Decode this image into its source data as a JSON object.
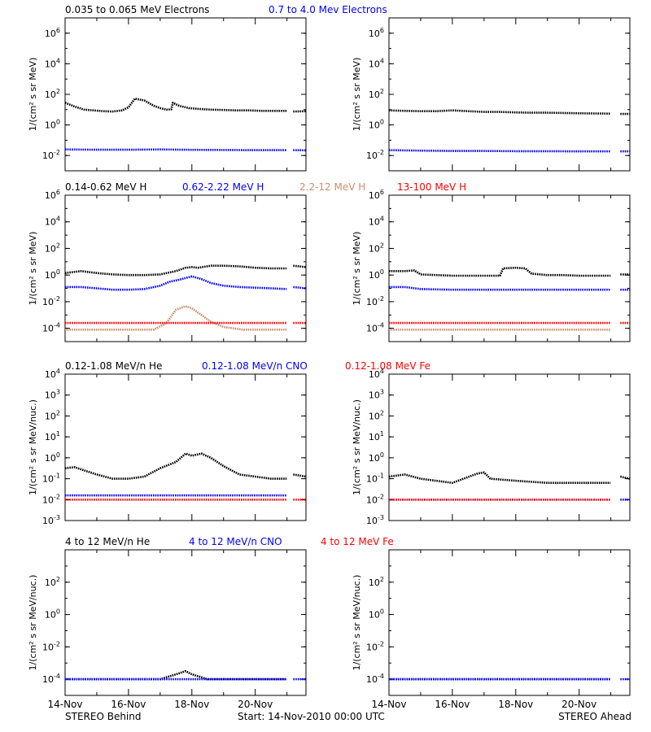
{
  "footer": {
    "left": "STEREO Behind",
    "center": "Start: 14-Nov-2010 00:00 UTC",
    "right": "STEREO Ahead"
  },
  "x_ticks": [
    "14-Nov",
    "16-Nov",
    "18-Nov",
    "20-Nov"
  ],
  "colors": {
    "black": "#000000",
    "blue": "#0000ff",
    "brown": "#cd8c6e",
    "red": "#ff0000"
  },
  "chart_data": [
    {
      "type": "scatter",
      "row": 0,
      "panels": [
        "STEREO Behind",
        "STEREO Ahead"
      ],
      "legend": [
        {
          "label": "0.035 to 0.065 MeV Electrons",
          "color": "black"
        },
        {
          "label": "0.7 to 4.0 Mev Electrons",
          "color": "blue"
        }
      ],
      "ylabel": "1/(cm² s sr MeV)",
      "yscale": "log",
      "ylim_exp": [
        -3,
        7
      ],
      "yticks": [
        {
          "exp": -2,
          "label": "10",
          "sup": "-2"
        },
        {
          "exp": 0,
          "label": "10",
          "sup": "0"
        },
        {
          "exp": 2,
          "label": "10",
          "sup": "2"
        },
        {
          "exp": 4,
          "label": "10",
          "sup": "4"
        },
        {
          "exp": 6,
          "label": "10",
          "sup": "6"
        }
      ],
      "xlim_days": [
        0,
        7.6
      ]
    },
    {
      "type": "scatter",
      "row": 1,
      "panels": [
        "STEREO Behind",
        "STEREO Ahead"
      ],
      "legend": [
        {
          "label": "0.14-0.62 MeV H",
          "color": "black"
        },
        {
          "label": "0.62-2.22 MeV H",
          "color": "blue"
        },
        {
          "label": "2.2-12 MeV H",
          "color": "brown"
        },
        {
          "label": "13-100 MeV H",
          "color": "red"
        }
      ],
      "ylabel": "1/(cm² s sr MeV)",
      "yscale": "log",
      "ylim_exp": [
        -5,
        6
      ],
      "yticks": [
        {
          "exp": -4,
          "label": "10",
          "sup": "-4"
        },
        {
          "exp": -2,
          "label": "10",
          "sup": "-2"
        },
        {
          "exp": 0,
          "label": "10",
          "sup": "0"
        },
        {
          "exp": 2,
          "label": "10",
          "sup": "2"
        },
        {
          "exp": 4,
          "label": "10",
          "sup": "4"
        },
        {
          "exp": 6,
          "label": "10",
          "sup": "6"
        }
      ],
      "xlim_days": [
        0,
        7.6
      ]
    },
    {
      "type": "scatter",
      "row": 2,
      "panels": [
        "STEREO Behind",
        "STEREO Ahead"
      ],
      "legend": [
        {
          "label": "0.12-1.08 MeV/n He",
          "color": "black"
        },
        {
          "label": "0.12-1.08 MeV/n CNO",
          "color": "blue"
        },
        {
          "label": "0.12-1.08 MeV Fe",
          "color": "red"
        }
      ],
      "ylabel": "1/(cm² s sr MeV/nuc.)",
      "yscale": "log",
      "ylim_exp": [
        -3,
        4
      ],
      "yticks": [
        {
          "exp": -3,
          "label": "10",
          "sup": "-3"
        },
        {
          "exp": -2,
          "label": "10",
          "sup": "-2"
        },
        {
          "exp": -1,
          "label": "10",
          "sup": "-1"
        },
        {
          "exp": 0,
          "label": "10",
          "sup": "0"
        },
        {
          "exp": 1,
          "label": "10",
          "sup": "1"
        },
        {
          "exp": 2,
          "label": "10",
          "sup": "2"
        },
        {
          "exp": 3,
          "label": "10",
          "sup": "3"
        },
        {
          "exp": 4,
          "label": "10",
          "sup": "4"
        }
      ],
      "xlim_days": [
        0,
        7.6
      ]
    },
    {
      "type": "scatter",
      "row": 3,
      "panels": [
        "STEREO Behind",
        "STEREO Ahead"
      ],
      "legend": [
        {
          "label": "4 to 12 MeV/n He",
          "color": "black"
        },
        {
          "label": "4 to 12 MeV/n CNO",
          "color": "blue"
        },
        {
          "label": "4 to 12 MeV Fe",
          "color": "red"
        }
      ],
      "ylabel": "1/(cm² s sr MeV/nuc.)",
      "yscale": "log",
      "ylim_exp": [
        -5,
        4
      ],
      "yticks": [
        {
          "exp": -4,
          "label": "10",
          "sup": "-4"
        },
        {
          "exp": -2,
          "label": "10",
          "sup": "-2"
        },
        {
          "exp": 0,
          "label": "10",
          "sup": "0"
        },
        {
          "exp": 2,
          "label": "10",
          "sup": "2"
        }
      ],
      "xlim_days": [
        0,
        7.6
      ]
    }
  ],
  "series": {
    "r0_behind_black": {
      "x": [
        0.0,
        0.3,
        0.6,
        0.9,
        1.2,
        1.5,
        1.8,
        2.0,
        2.2,
        2.5,
        2.8,
        3.0,
        3.2,
        3.35,
        3.4,
        3.6,
        3.9,
        4.2,
        4.6,
        5.0,
        5.4,
        5.8,
        6.2,
        6.6,
        6.99
      ],
      "y_exp": [
        1.45,
        1.2,
        1.0,
        0.95,
        0.9,
        0.88,
        0.95,
        1.15,
        1.72,
        1.6,
        1.25,
        1.1,
        1.0,
        1.02,
        1.45,
        1.25,
        1.1,
        1.05,
        1.0,
        0.98,
        0.95,
        0.95,
        0.92,
        0.92,
        0.92
      ]
    },
    "r0_behind_black_b": {
      "x": [
        7.2,
        7.6
      ],
      "y_exp": [
        0.88,
        0.9
      ]
    },
    "r0_behind_blue": {
      "x": [
        0.0,
        1.0,
        2.0,
        3.0,
        4.0,
        5.0,
        6.0,
        6.99
      ],
      "y_exp": [
        -1.6,
        -1.62,
        -1.62,
        -1.6,
        -1.63,
        -1.64,
        -1.65,
        -1.65
      ]
    },
    "r0_behind_blue_b": {
      "x": [
        7.2,
        7.6
      ],
      "y_exp": [
        -1.65,
        -1.66
      ]
    },
    "r0_ahead_black": {
      "x": [
        0.0,
        0.5,
        1.0,
        1.5,
        2.0,
        2.5,
        3.0,
        3.5,
        4.0,
        4.5,
        5.0,
        5.5,
        6.0,
        6.5,
        6.99
      ],
      "y_exp": [
        0.95,
        0.92,
        0.9,
        0.9,
        0.95,
        0.9,
        0.85,
        0.85,
        0.82,
        0.8,
        0.8,
        0.78,
        0.76,
        0.75,
        0.74
      ]
    },
    "r0_ahead_black_b": {
      "x": [
        7.3,
        7.6
      ],
      "y_exp": [
        0.72,
        0.72
      ]
    },
    "r0_ahead_blue": {
      "x": [
        0.0,
        1.0,
        2.0,
        3.0,
        4.0,
        5.0,
        6.0,
        6.99
      ],
      "y_exp": [
        -1.65,
        -1.68,
        -1.7,
        -1.7,
        -1.72,
        -1.72,
        -1.73,
        -1.73
      ]
    },
    "r0_ahead_blue_b": {
      "x": [
        7.3,
        7.6
      ],
      "y_exp": [
        -1.73,
        -1.73
      ]
    },
    "r1_behind_black": {
      "x": [
        0.0,
        0.5,
        1.0,
        1.5,
        2.0,
        2.5,
        3.0,
        3.5,
        3.8,
        4.0,
        4.2,
        4.6,
        5.0,
        5.5,
        6.0,
        6.5,
        6.99
      ],
      "y_exp": [
        0.15,
        0.3,
        0.15,
        0.05,
        0.0,
        0.0,
        0.05,
        0.3,
        0.55,
        0.6,
        0.55,
        0.7,
        0.7,
        0.65,
        0.55,
        0.5,
        0.5
      ]
    },
    "r1_behind_black_b": {
      "x": [
        7.2,
        7.6
      ],
      "y_exp": [
        0.7,
        0.6
      ]
    },
    "r1_behind_blue": {
      "x": [
        0.0,
        0.5,
        1.0,
        1.5,
        2.0,
        2.5,
        3.0,
        3.3,
        3.6,
        4.0,
        4.3,
        4.6,
        5.0,
        5.5,
        6.0,
        6.5,
        6.99
      ],
      "y_exp": [
        -0.9,
        -0.9,
        -1.0,
        -1.1,
        -1.1,
        -1.05,
        -0.8,
        -0.5,
        -0.35,
        -0.1,
        -0.3,
        -0.6,
        -0.8,
        -0.9,
        -0.95,
        -1.0,
        -1.05
      ]
    },
    "r1_behind_blue_b": {
      "x": [
        7.2,
        7.6
      ],
      "y_exp": [
        -0.9,
        -1.0
      ]
    },
    "r1_behind_brown": {
      "x": [
        0.0,
        2.8,
        3.2,
        3.5,
        3.8,
        4.0,
        4.3,
        4.6,
        5.0,
        5.3,
        5.6,
        6.0,
        6.99
      ],
      "y_exp": [
        -4.1,
        -4.1,
        -3.6,
        -2.6,
        -2.35,
        -2.5,
        -3.0,
        -3.5,
        -3.9,
        -4.0,
        -4.1,
        -4.1,
        -4.1
      ]
    },
    "r1_behind_red": {
      "x": [
        0.0,
        1.0,
        2.0,
        3.0,
        4.0,
        5.0,
        6.0,
        6.99
      ],
      "y_exp": [
        -3.6,
        -3.6,
        -3.6,
        -3.6,
        -3.6,
        -3.6,
        -3.6,
        -3.6
      ]
    },
    "r1_behind_red_b": {
      "x": [
        7.2,
        7.6
      ],
      "y_exp": [
        -3.6,
        -3.6
      ]
    },
    "r1_ahead_black": {
      "x": [
        0.0,
        0.5,
        0.8,
        1.0,
        1.5,
        2.0,
        2.5,
        3.0,
        3.5,
        3.6,
        4.0,
        4.3,
        4.5,
        5.0,
        5.5,
        6.0,
        6.5,
        6.99
      ],
      "y_exp": [
        0.3,
        0.3,
        0.35,
        0.05,
        0.0,
        -0.05,
        -0.05,
        -0.05,
        -0.05,
        0.5,
        0.55,
        0.5,
        0.1,
        0.0,
        0.0,
        -0.05,
        -0.05,
        -0.05
      ]
    },
    "r1_ahead_black_b": {
      "x": [
        7.3,
        7.6
      ],
      "y_exp": [
        0.05,
        0.05
      ]
    },
    "r1_ahead_blue": {
      "x": [
        0.0,
        0.5,
        1.0,
        2.0,
        3.0,
        4.0,
        5.0,
        6.0,
        6.99
      ],
      "y_exp": [
        -0.9,
        -0.9,
        -1.05,
        -1.1,
        -1.1,
        -1.1,
        -1.1,
        -1.1,
        -1.1
      ]
    },
    "r1_ahead_blue_b": {
      "x": [
        7.3,
        7.6
      ],
      "y_exp": [
        -1.1,
        -1.1
      ]
    },
    "r1_ahead_brown": {
      "x": [
        0.0,
        6.99
      ],
      "y_exp": [
        -4.1,
        -4.1
      ]
    },
    "r1_ahead_red": {
      "x": [
        0.0,
        1.0,
        2.0,
        3.0,
        4.0,
        5.0,
        6.0,
        6.99
      ],
      "y_exp": [
        -3.6,
        -3.6,
        -3.6,
        -3.6,
        -3.6,
        -3.6,
        -3.6,
        -3.6
      ]
    },
    "r1_ahead_red_b": {
      "x": [
        7.3,
        7.6
      ],
      "y_exp": [
        -3.6,
        -3.6
      ]
    },
    "r2_behind_black": {
      "x": [
        0.0,
        0.3,
        0.6,
        1.0,
        1.5,
        2.0,
        2.5,
        3.0,
        3.5,
        3.8,
        4.0,
        4.3,
        4.6,
        5.0,
        5.5,
        6.0,
        6.5,
        6.99
      ],
      "y_exp": [
        -0.5,
        -0.45,
        -0.6,
        -0.8,
        -1.0,
        -1.0,
        -0.9,
        -0.5,
        -0.2,
        0.2,
        0.1,
        0.2,
        0.0,
        -0.4,
        -0.8,
        -0.9,
        -1.0,
        -1.0
      ]
    },
    "r2_behind_black_b": {
      "x": [
        7.2,
        7.6
      ],
      "y_exp": [
        -0.8,
        -0.9
      ]
    },
    "r2_behind_blue": {
      "x": [
        0.0,
        1.0,
        2.0,
        3.0,
        4.0,
        5.0,
        6.0,
        6.99
      ],
      "y_exp": [
        -1.8,
        -1.8,
        -1.8,
        -1.8,
        -1.8,
        -1.8,
        -1.8,
        -1.8
      ]
    },
    "r2_behind_red": {
      "x": [
        0.0,
        1.0,
        2.0,
        3.0,
        4.0,
        5.0,
        6.0,
        6.99
      ],
      "y_exp": [
        -2.0,
        -2.0,
        -2.0,
        -2.0,
        -2.0,
        -2.0,
        -2.0,
        -2.0
      ]
    },
    "r2_behind_red_b": {
      "x": [
        7.2,
        7.6
      ],
      "y_exp": [
        -2.0,
        -2.0
      ]
    },
    "r2_ahead_black": {
      "x": [
        0.0,
        0.5,
        1.0,
        2.0,
        2.8,
        3.0,
        3.2,
        4.0,
        5.0,
        6.0,
        6.99
      ],
      "y_exp": [
        -0.9,
        -0.8,
        -1.0,
        -1.2,
        -0.75,
        -0.7,
        -1.0,
        -1.1,
        -1.2,
        -1.2,
        -1.2
      ]
    },
    "r2_ahead_black_b": {
      "x": [
        7.3,
        7.6
      ],
      "y_exp": [
        -0.9,
        -1.0
      ]
    },
    "r2_ahead_blue": {
      "x": [
        0.0,
        1.0,
        2.0,
        3.0,
        4.0,
        5.0,
        6.0,
        6.99
      ],
      "y_exp": [
        -2.0,
        -2.0,
        -2.0,
        -2.0,
        -2.0,
        -2.0,
        -2.0,
        -2.0
      ]
    },
    "r2_ahead_blue_b": {
      "x": [
        7.3,
        7.6
      ],
      "y_exp": [
        -2.0,
        -2.0
      ]
    },
    "r2_ahead_red": {
      "x": [
        0.0,
        1.0,
        2.0,
        3.0,
        4.0,
        5.0,
        6.0,
        6.99
      ],
      "y_exp": [
        -2.0,
        -2.0,
        -2.0,
        -2.0,
        -2.0,
        -2.0,
        -2.0,
        -2.0
      ]
    },
    "r3_behind_black": {
      "x": [
        0.0,
        1.0,
        2.0,
        3.0,
        3.5,
        3.8,
        4.0,
        4.5,
        5.0,
        6.0,
        6.99
      ],
      "y_exp": [
        -4.0,
        -4.0,
        -4.0,
        -4.0,
        -3.7,
        -3.5,
        -3.7,
        -4.0,
        -4.0,
        -4.0,
        -4.0
      ]
    },
    "r3_behind_blue": {
      "x": [
        0.0,
        1.0,
        2.0,
        3.0,
        4.0,
        5.0,
        6.0,
        6.99
      ],
      "y_exp": [
        -4.0,
        -4.0,
        -4.0,
        -4.0,
        -4.0,
        -4.0,
        -4.0,
        -4.0
      ]
    },
    "r3_behind_blue_b": {
      "x": [
        7.2,
        7.6
      ],
      "y_exp": [
        -4.0,
        -4.0
      ]
    },
    "r3_ahead_black": {
      "x": [
        0.0,
        1.0,
        2.0,
        3.0,
        4.0,
        5.0,
        6.0,
        6.99
      ],
      "y_exp": [
        -4.0,
        -4.0,
        -4.0,
        -4.0,
        -4.0,
        -4.0,
        -4.0,
        -4.0
      ]
    },
    "r3_ahead_blue": {
      "x": [
        0.0,
        1.0,
        2.0,
        3.0,
        4.0,
        5.0,
        6.0,
        6.99
      ],
      "y_exp": [
        -4.0,
        -4.0,
        -4.0,
        -4.0,
        -4.0,
        -4.0,
        -4.0,
        -4.0
      ]
    },
    "r3_ahead_blue_b": {
      "x": [
        7.3,
        7.6
      ],
      "y_exp": [
        -4.0,
        -4.0
      ]
    }
  },
  "series_layout": {
    "r0_behind_black": {
      "row": 0,
      "col": 0,
      "color": "black"
    },
    "r0_behind_black_b": {
      "row": 0,
      "col": 0,
      "color": "black"
    },
    "r0_behind_blue": {
      "row": 0,
      "col": 0,
      "color": "blue"
    },
    "r0_behind_blue_b": {
      "row": 0,
      "col": 0,
      "color": "blue"
    },
    "r0_ahead_black": {
      "row": 0,
      "col": 1,
      "color": "black"
    },
    "r0_ahead_black_b": {
      "row": 0,
      "col": 1,
      "color": "black"
    },
    "r0_ahead_blue": {
      "row": 0,
      "col": 1,
      "color": "blue"
    },
    "r0_ahead_blue_b": {
      "row": 0,
      "col": 1,
      "color": "blue"
    },
    "r1_behind_black": {
      "row": 1,
      "col": 0,
      "color": "black"
    },
    "r1_behind_black_b": {
      "row": 1,
      "col": 0,
      "color": "black"
    },
    "r1_behind_blue": {
      "row": 1,
      "col": 0,
      "color": "blue"
    },
    "r1_behind_blue_b": {
      "row": 1,
      "col": 0,
      "color": "blue"
    },
    "r1_behind_brown": {
      "row": 1,
      "col": 0,
      "color": "brown"
    },
    "r1_behind_red": {
      "row": 1,
      "col": 0,
      "color": "red"
    },
    "r1_behind_red_b": {
      "row": 1,
      "col": 0,
      "color": "red"
    },
    "r1_ahead_black": {
      "row": 1,
      "col": 1,
      "color": "black"
    },
    "r1_ahead_black_b": {
      "row": 1,
      "col": 1,
      "color": "black"
    },
    "r1_ahead_blue": {
      "row": 1,
      "col": 1,
      "color": "blue"
    },
    "r1_ahead_blue_b": {
      "row": 1,
      "col": 1,
      "color": "blue"
    },
    "r1_ahead_brown": {
      "row": 1,
      "col": 1,
      "color": "brown"
    },
    "r1_ahead_red": {
      "row": 1,
      "col": 1,
      "color": "red"
    },
    "r1_ahead_red_b": {
      "row": 1,
      "col": 1,
      "color": "red"
    },
    "r2_behind_black": {
      "row": 2,
      "col": 0,
      "color": "black"
    },
    "r2_behind_black_b": {
      "row": 2,
      "col": 0,
      "color": "black"
    },
    "r2_behind_blue": {
      "row": 2,
      "col": 0,
      "color": "blue"
    },
    "r2_behind_red": {
      "row": 2,
      "col": 0,
      "color": "red"
    },
    "r2_behind_red_b": {
      "row": 2,
      "col": 0,
      "color": "red"
    },
    "r2_ahead_black": {
      "row": 2,
      "col": 1,
      "color": "black"
    },
    "r2_ahead_black_b": {
      "row": 2,
      "col": 1,
      "color": "black"
    },
    "r2_ahead_blue": {
      "row": 2,
      "col": 1,
      "color": "blue"
    },
    "r2_ahead_blue_b": {
      "row": 2,
      "col": 1,
      "color": "blue"
    },
    "r2_ahead_red": {
      "row": 2,
      "col": 1,
      "color": "red"
    },
    "r3_behind_black": {
      "row": 3,
      "col": 0,
      "color": "black"
    },
    "r3_behind_blue": {
      "row": 3,
      "col": 0,
      "color": "blue"
    },
    "r3_behind_blue_b": {
      "row": 3,
      "col": 0,
      "color": "blue"
    },
    "r3_ahead_black": {
      "row": 3,
      "col": 1,
      "color": "black"
    },
    "r3_ahead_blue": {
      "row": 3,
      "col": 1,
      "color": "blue"
    },
    "r3_ahead_blue_b": {
      "row": 3,
      "col": 1,
      "color": "blue"
    }
  }
}
